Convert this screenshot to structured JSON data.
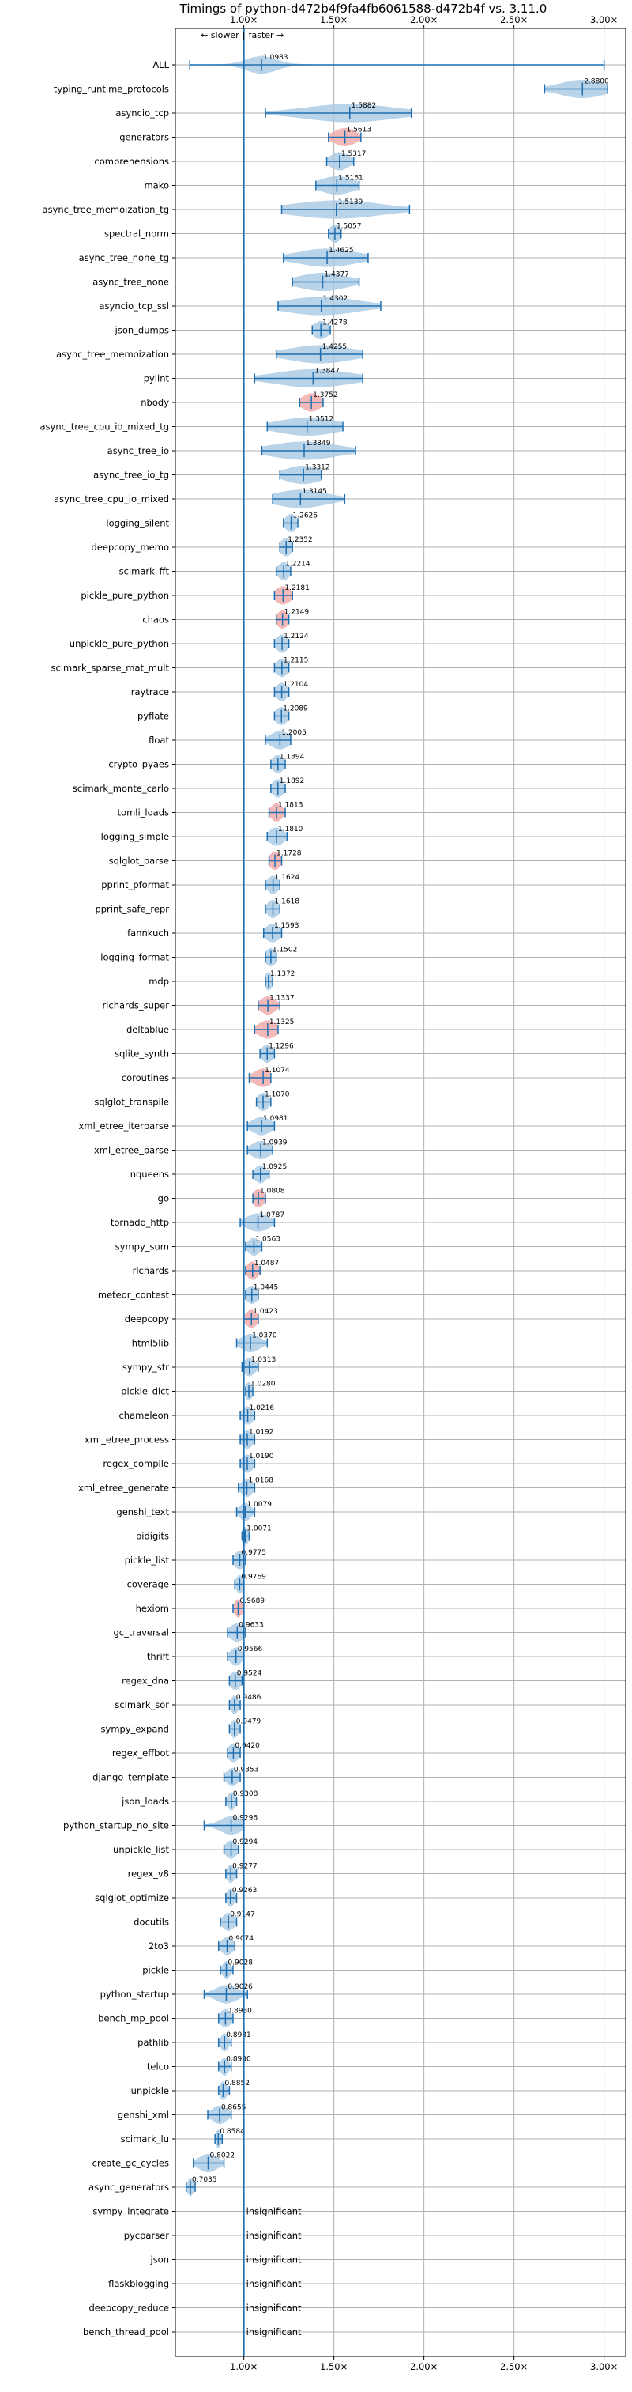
{
  "chart_data": {
    "type": "violin",
    "title": "Timings of python-d472b4f9fa4fb6061588-d472b4f vs. 3.11.0",
    "direction_labels": {
      "slower": "← slower",
      "separator": "|",
      "faster": "faster →"
    },
    "x_ticks": [
      {
        "value": 1.0,
        "label": "1.00×"
      },
      {
        "value": 1.5,
        "label": "1.50×"
      },
      {
        "value": 2.0,
        "label": "2.00×"
      },
      {
        "value": 2.5,
        "label": "2.50×"
      },
      {
        "value": 3.0,
        "label": "3.00×"
      }
    ],
    "xlim": [
      0.62,
      3.12
    ],
    "baseline": 1.0,
    "grid": true,
    "insignificant_text": "insignificant",
    "colors": {
      "violin": "#a8c8e4",
      "line": "#1f6fb0",
      "highlight": "#f0a8a8",
      "grid": "#b0b0b0",
      "baseline": "#1f6fb0"
    },
    "benchmarks": [
      {
        "name": "ALL",
        "value": 1.0983,
        "label": "1.0983",
        "min": 0.7,
        "max": 3.0,
        "spread": 0.08
      },
      {
        "name": "typing_runtime_protocols",
        "value": 2.88,
        "label": "2.8800",
        "min": 2.67,
        "max": 3.02,
        "spread": 0.12
      },
      {
        "name": "asyncio_tcp",
        "value": 1.5882,
        "label": "1.5882",
        "min": 1.12,
        "max": 1.93,
        "spread": 0.24
      },
      {
        "name": "generators",
        "value": 1.5613,
        "label": "1.5613",
        "min": 1.47,
        "max": 1.65,
        "spread": 0.06,
        "highlight": true
      },
      {
        "name": "comprehensions",
        "value": 1.5317,
        "label": "1.5317",
        "min": 1.46,
        "max": 1.61,
        "spread": 0.05
      },
      {
        "name": "mako",
        "value": 1.5161,
        "label": "1.5161",
        "min": 1.4,
        "max": 1.64,
        "spread": 0.09
      },
      {
        "name": "async_tree_memoization_tg",
        "value": 1.5139,
        "label": "1.5139",
        "min": 1.21,
        "max": 1.92,
        "spread": 0.24
      },
      {
        "name": "spectral_norm",
        "value": 1.5057,
        "label": "1.5057",
        "min": 1.47,
        "max": 1.54,
        "spread": 0.03
      },
      {
        "name": "async_tree_none_tg",
        "value": 1.4625,
        "label": "1.4625",
        "min": 1.22,
        "max": 1.69,
        "spread": 0.16
      },
      {
        "name": "async_tree_none",
        "value": 1.4377,
        "label": "1.4377",
        "min": 1.27,
        "max": 1.64,
        "spread": 0.13
      },
      {
        "name": "asyncio_tcp_ssl",
        "value": 1.4302,
        "label": "1.4302",
        "min": 1.19,
        "max": 1.76,
        "spread": 0.2
      },
      {
        "name": "json_dumps",
        "value": 1.4278,
        "label": "1.4278",
        "min": 1.38,
        "max": 1.48,
        "spread": 0.04
      },
      {
        "name": "async_tree_memoization",
        "value": 1.4255,
        "label": "1.4255",
        "min": 1.18,
        "max": 1.66,
        "spread": 0.17
      },
      {
        "name": "pylint",
        "value": 1.3847,
        "label": "1.3847",
        "min": 1.06,
        "max": 1.66,
        "spread": 0.2
      },
      {
        "name": "nbody",
        "value": 1.3752,
        "label": "1.3752",
        "min": 1.31,
        "max": 1.44,
        "spread": 0.05,
        "highlight": true
      },
      {
        "name": "async_tree_cpu_io_mixed_tg",
        "value": 1.3512,
        "label": "1.3512",
        "min": 1.13,
        "max": 1.55,
        "spread": 0.16
      },
      {
        "name": "async_tree_io",
        "value": 1.3349,
        "label": "1.3349",
        "min": 1.1,
        "max": 1.62,
        "spread": 0.18
      },
      {
        "name": "async_tree_io_tg",
        "value": 1.3312,
        "label": "1.3312",
        "min": 1.2,
        "max": 1.43,
        "spread": 0.1
      },
      {
        "name": "async_tree_cpu_io_mixed",
        "value": 1.3145,
        "label": "1.3145",
        "min": 1.16,
        "max": 1.56,
        "spread": 0.14
      },
      {
        "name": "logging_silent",
        "value": 1.2626,
        "label": "1.2626",
        "min": 1.22,
        "max": 1.3,
        "spread": 0.03
      },
      {
        "name": "deepcopy_memo",
        "value": 1.2352,
        "label": "1.2352",
        "min": 1.2,
        "max": 1.27,
        "spread": 0.03
      },
      {
        "name": "scimark_fft",
        "value": 1.2214,
        "label": "1.2214",
        "min": 1.18,
        "max": 1.26,
        "spread": 0.03
      },
      {
        "name": "pickle_pure_python",
        "value": 1.2181,
        "label": "1.2181",
        "min": 1.17,
        "max": 1.27,
        "spread": 0.04,
        "highlight": true
      },
      {
        "name": "chaos",
        "value": 1.2149,
        "label": "1.2149",
        "min": 1.18,
        "max": 1.25,
        "spread": 0.03,
        "highlight": true
      },
      {
        "name": "unpickle_pure_python",
        "value": 1.2124,
        "label": "1.2124",
        "min": 1.17,
        "max": 1.25,
        "spread": 0.03
      },
      {
        "name": "scimark_sparse_mat_mult",
        "value": 1.2115,
        "label": "1.2115",
        "min": 1.17,
        "max": 1.25,
        "spread": 0.03
      },
      {
        "name": "raytrace",
        "value": 1.2104,
        "label": "1.2104",
        "min": 1.17,
        "max": 1.25,
        "spread": 0.03
      },
      {
        "name": "pyflate",
        "value": 1.2089,
        "label": "1.2089",
        "min": 1.17,
        "max": 1.25,
        "spread": 0.03
      },
      {
        "name": "float",
        "value": 1.2005,
        "label": "1.2005",
        "min": 1.12,
        "max": 1.26,
        "spread": 0.05
      },
      {
        "name": "crypto_pyaes",
        "value": 1.1894,
        "label": "1.1894",
        "min": 1.15,
        "max": 1.23,
        "spread": 0.03
      },
      {
        "name": "scimark_monte_carlo",
        "value": 1.1892,
        "label": "1.1892",
        "min": 1.15,
        "max": 1.23,
        "spread": 0.03
      },
      {
        "name": "tomli_loads",
        "value": 1.1813,
        "label": "1.1813",
        "min": 1.14,
        "max": 1.23,
        "spread": 0.03,
        "highlight": true
      },
      {
        "name": "logging_simple",
        "value": 1.181,
        "label": "1.1810",
        "min": 1.13,
        "max": 1.24,
        "spread": 0.04
      },
      {
        "name": "sqlglot_parse",
        "value": 1.1728,
        "label": "1.1728",
        "min": 1.14,
        "max": 1.21,
        "spread": 0.03,
        "highlight": true
      },
      {
        "name": "pprint_pformat",
        "value": 1.1624,
        "label": "1.1624",
        "min": 1.12,
        "max": 1.2,
        "spread": 0.03
      },
      {
        "name": "pprint_safe_repr",
        "value": 1.1618,
        "label": "1.1618",
        "min": 1.12,
        "max": 1.2,
        "spread": 0.03
      },
      {
        "name": "fannkuch",
        "value": 1.1593,
        "label": "1.1593",
        "min": 1.11,
        "max": 1.21,
        "spread": 0.04
      },
      {
        "name": "logging_format",
        "value": 1.1502,
        "label": "1.1502",
        "min": 1.12,
        "max": 1.18,
        "spread": 0.03
      },
      {
        "name": "mdp",
        "value": 1.1372,
        "label": "1.1372",
        "min": 1.12,
        "max": 1.16,
        "spread": 0.02
      },
      {
        "name": "richards_super",
        "value": 1.1337,
        "label": "1.1337",
        "min": 1.08,
        "max": 1.2,
        "spread": 0.04,
        "highlight": true
      },
      {
        "name": "deltablue",
        "value": 1.1325,
        "label": "1.1325",
        "min": 1.06,
        "max": 1.19,
        "spread": 0.05,
        "highlight": true
      },
      {
        "name": "sqlite_synth",
        "value": 1.1296,
        "label": "1.1296",
        "min": 1.09,
        "max": 1.17,
        "spread": 0.03
      },
      {
        "name": "coroutines",
        "value": 1.1074,
        "label": "1.1074",
        "min": 1.03,
        "max": 1.15,
        "spread": 0.05,
        "highlight": true
      },
      {
        "name": "sqlglot_transpile",
        "value": 1.107,
        "label": "1.1070",
        "min": 1.07,
        "max": 1.15,
        "spread": 0.03
      },
      {
        "name": "xml_etree_iterparse",
        "value": 1.0981,
        "label": "1.0981",
        "min": 1.02,
        "max": 1.17,
        "spread": 0.05
      },
      {
        "name": "xml_etree_parse",
        "value": 1.0939,
        "label": "1.0939",
        "min": 1.02,
        "max": 1.16,
        "spread": 0.05
      },
      {
        "name": "nqueens",
        "value": 1.0925,
        "label": "1.0925",
        "min": 1.05,
        "max": 1.14,
        "spread": 0.03
      },
      {
        "name": "go",
        "value": 1.0808,
        "label": "1.0808",
        "min": 1.05,
        "max": 1.12,
        "spread": 0.03,
        "highlight": true
      },
      {
        "name": "tornado_http",
        "value": 1.0787,
        "label": "1.0787",
        "min": 0.98,
        "max": 1.17,
        "spread": 0.06
      },
      {
        "name": "sympy_sum",
        "value": 1.0563,
        "label": "1.0563",
        "min": 1.01,
        "max": 1.1,
        "spread": 0.03
      },
      {
        "name": "richards",
        "value": 1.0487,
        "label": "1.0487",
        "min": 1.01,
        "max": 1.09,
        "spread": 0.03,
        "highlight": true
      },
      {
        "name": "meteor_contest",
        "value": 1.0445,
        "label": "1.0445",
        "min": 1.01,
        "max": 1.08,
        "spread": 0.03
      },
      {
        "name": "deepcopy",
        "value": 1.0423,
        "label": "1.0423",
        "min": 1.0,
        "max": 1.08,
        "spread": 0.03,
        "highlight": true
      },
      {
        "name": "html5lib",
        "value": 1.037,
        "label": "1.0370",
        "min": 0.96,
        "max": 1.13,
        "spread": 0.05
      },
      {
        "name": "sympy_str",
        "value": 1.0313,
        "label": "1.0313",
        "min": 0.99,
        "max": 1.08,
        "spread": 0.03
      },
      {
        "name": "pickle_dict",
        "value": 1.028,
        "label": "1.0280",
        "min": 1.01,
        "max": 1.05,
        "spread": 0.02
      },
      {
        "name": "chameleon",
        "value": 1.0216,
        "label": "1.0216",
        "min": 0.98,
        "max": 1.06,
        "spread": 0.03
      },
      {
        "name": "xml_etree_process",
        "value": 1.0192,
        "label": "1.0192",
        "min": 0.98,
        "max": 1.06,
        "spread": 0.03
      },
      {
        "name": "regex_compile",
        "value": 1.019,
        "label": "1.0190",
        "min": 0.98,
        "max": 1.06,
        "spread": 0.03
      },
      {
        "name": "xml_etree_generate",
        "value": 1.0168,
        "label": "1.0168",
        "min": 0.97,
        "max": 1.06,
        "spread": 0.03
      },
      {
        "name": "genshi_text",
        "value": 1.0079,
        "label": "1.0079",
        "min": 0.96,
        "max": 1.06,
        "spread": 0.03
      },
      {
        "name": "pidigits",
        "value": 1.0071,
        "label": "1.0071",
        "min": 0.99,
        "max": 1.03,
        "spread": 0.02
      },
      {
        "name": "pickle_list",
        "value": 0.9775,
        "label": "0.9775",
        "min": 0.94,
        "max": 1.01,
        "spread": 0.03
      },
      {
        "name": "coverage",
        "value": 0.9769,
        "label": "0.9769",
        "min": 0.95,
        "max": 1.0,
        "spread": 0.02
      },
      {
        "name": "hexiom",
        "value": 0.9689,
        "label": "0.9689",
        "min": 0.94,
        "max": 1.0,
        "spread": 0.02,
        "highlight": true
      },
      {
        "name": "gc_traversal",
        "value": 0.9633,
        "label": "0.9633",
        "min": 0.91,
        "max": 1.01,
        "spread": 0.04
      },
      {
        "name": "thrift",
        "value": 0.9566,
        "label": "0.9566",
        "min": 0.91,
        "max": 1.0,
        "spread": 0.03
      },
      {
        "name": "regex_dna",
        "value": 0.9524,
        "label": "0.9524",
        "min": 0.92,
        "max": 0.99,
        "spread": 0.03
      },
      {
        "name": "scimark_sor",
        "value": 0.9486,
        "label": "0.9486",
        "min": 0.92,
        "max": 0.98,
        "spread": 0.02
      },
      {
        "name": "sympy_expand",
        "value": 0.9479,
        "label": "0.9479",
        "min": 0.92,
        "max": 0.98,
        "spread": 0.02
      },
      {
        "name": "regex_effbot",
        "value": 0.942,
        "label": "0.9420",
        "min": 0.91,
        "max": 0.98,
        "spread": 0.03
      },
      {
        "name": "django_template",
        "value": 0.9353,
        "label": "0.9353",
        "min": 0.89,
        "max": 0.98,
        "spread": 0.03
      },
      {
        "name": "json_loads",
        "value": 0.9308,
        "label": "0.9308",
        "min": 0.9,
        "max": 0.96,
        "spread": 0.02
      },
      {
        "name": "python_startup_no_site",
        "value": 0.9296,
        "label": "0.9296",
        "min": 0.78,
        "max": 1.0,
        "spread": 0.06
      },
      {
        "name": "unpickle_list",
        "value": 0.9294,
        "label": "0.9294",
        "min": 0.89,
        "max": 0.97,
        "spread": 0.03
      },
      {
        "name": "regex_v8",
        "value": 0.9277,
        "label": "0.9277",
        "min": 0.9,
        "max": 0.96,
        "spread": 0.02
      },
      {
        "name": "sqlglot_optimize",
        "value": 0.9263,
        "label": "0.9263",
        "min": 0.9,
        "max": 0.96,
        "spread": 0.02
      },
      {
        "name": "docutils",
        "value": 0.9147,
        "label": "0.9147",
        "min": 0.87,
        "max": 0.96,
        "spread": 0.03
      },
      {
        "name": "2to3",
        "value": 0.9074,
        "label": "0.9074",
        "min": 0.86,
        "max": 0.95,
        "spread": 0.03
      },
      {
        "name": "pickle",
        "value": 0.9028,
        "label": "0.9028",
        "min": 0.87,
        "max": 0.94,
        "spread": 0.02
      },
      {
        "name": "python_startup",
        "value": 0.9026,
        "label": "0.9026",
        "min": 0.78,
        "max": 1.02,
        "spread": 0.06
      },
      {
        "name": "bench_mp_pool",
        "value": 0.898,
        "label": "0.8980",
        "min": 0.86,
        "max": 0.94,
        "spread": 0.03
      },
      {
        "name": "pathlib",
        "value": 0.8931,
        "label": "0.8931",
        "min": 0.86,
        "max": 0.93,
        "spread": 0.02
      },
      {
        "name": "telco",
        "value": 0.893,
        "label": "0.8930",
        "min": 0.86,
        "max": 0.93,
        "spread": 0.02
      },
      {
        "name": "unpickle",
        "value": 0.8852,
        "label": "0.8852",
        "min": 0.86,
        "max": 0.92,
        "spread": 0.02
      },
      {
        "name": "genshi_xml",
        "value": 0.8655,
        "label": "0.8655",
        "min": 0.8,
        "max": 0.93,
        "spread": 0.04
      },
      {
        "name": "scimark_lu",
        "value": 0.8584,
        "label": "0.8584",
        "min": 0.84,
        "max": 0.88,
        "spread": 0.015
      },
      {
        "name": "create_gc_cycles",
        "value": 0.8022,
        "label": "0.8022",
        "min": 0.72,
        "max": 0.89,
        "spread": 0.05
      },
      {
        "name": "async_generators",
        "value": 0.7035,
        "label": "0.7035",
        "min": 0.68,
        "max": 0.73,
        "spread": 0.015
      },
      {
        "name": "sympy_integrate",
        "insignificant": true
      },
      {
        "name": "pycparser",
        "insignificant": true
      },
      {
        "name": "json",
        "insignificant": true
      },
      {
        "name": "flaskblogging",
        "insignificant": true
      },
      {
        "name": "deepcopy_reduce",
        "insignificant": true
      },
      {
        "name": "bench_thread_pool",
        "insignificant": true
      }
    ]
  }
}
